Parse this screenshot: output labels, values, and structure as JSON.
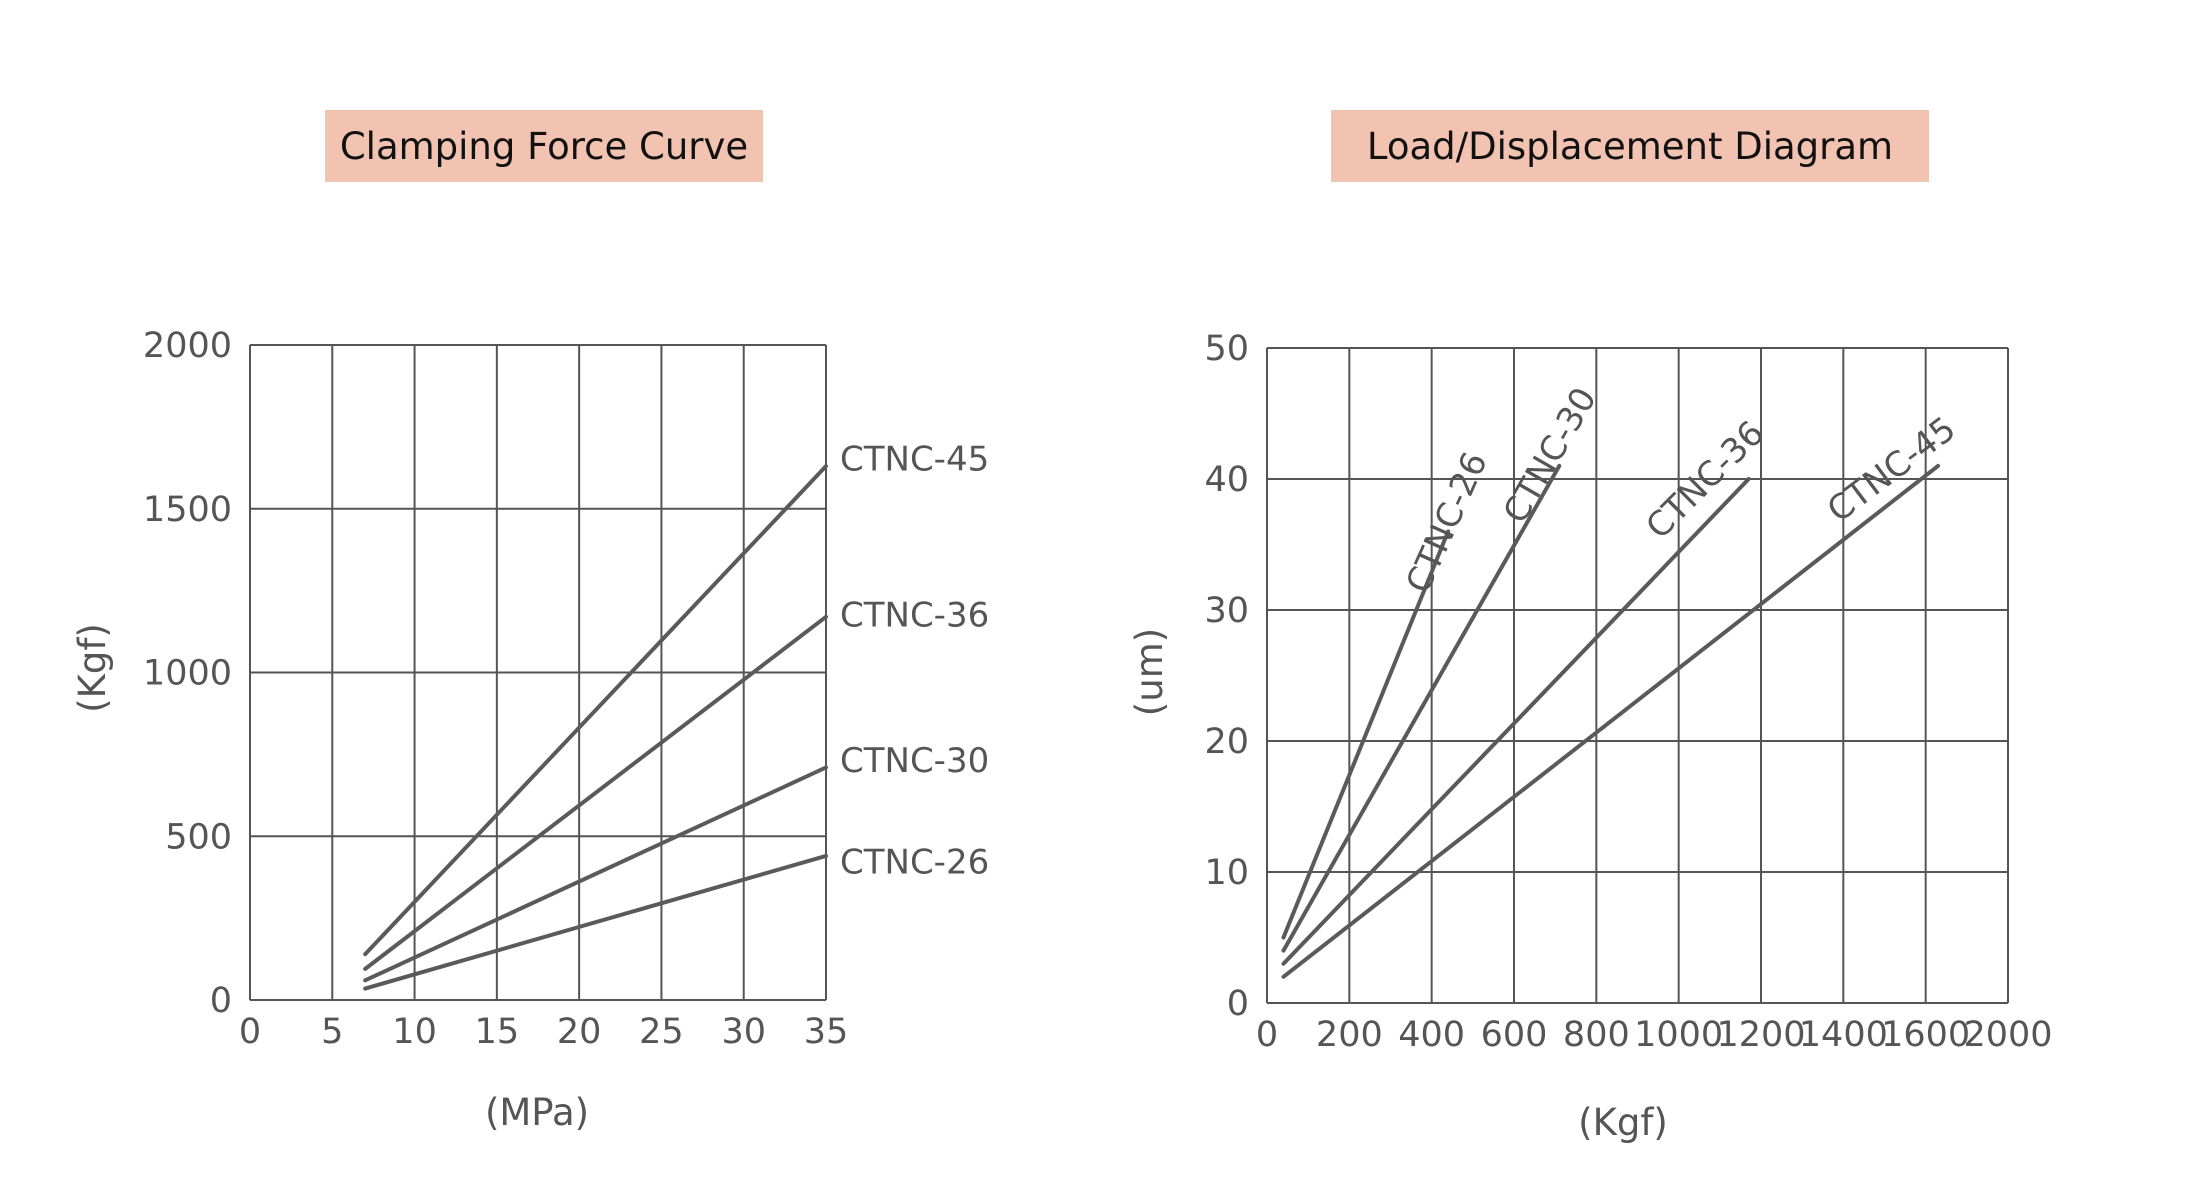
{
  "chart_data": [
    {
      "type": "line",
      "title": "Clamping Force Curve",
      "xlabel": "(MPa)",
      "ylabel": "(Kgf)",
      "xlim": [
        0,
        35
      ],
      "ylim": [
        0,
        2000
      ],
      "x_ticks": [
        "0",
        "5",
        "10",
        "15",
        "20",
        "25",
        "30",
        "35"
      ],
      "y_ticks": [
        "0",
        "500",
        "1000",
        "1500",
        "2000"
      ],
      "grid": true,
      "series": [
        {
          "name": "CTNC-45",
          "points": [
            [
              7,
              140
            ],
            [
              35,
              1630
            ]
          ]
        },
        {
          "name": "CTNC-36",
          "points": [
            [
              7,
              95
            ],
            [
              35,
              1170
            ]
          ]
        },
        {
          "name": "CTNC-30",
          "points": [
            [
              7,
              60
            ],
            [
              35,
              710
            ]
          ]
        },
        {
          "name": "CTNC-26",
          "points": [
            [
              7,
              35
            ],
            [
              35,
              440
            ]
          ]
        }
      ]
    },
    {
      "type": "line",
      "title": "Load/Displacement Diagram",
      "xlabel": "(Kgf)",
      "ylabel": "(um)",
      "xlim": [
        0,
        2000
      ],
      "ylim": [
        0,
        50
      ],
      "x_ticks": [
        "0",
        "200",
        "400",
        "600",
        "800",
        "1000",
        "1200",
        "1400",
        "1600",
        "2000"
      ],
      "y_ticks": [
        "0",
        "10",
        "20",
        "30",
        "40",
        "50"
      ],
      "grid": true,
      "series": [
        {
          "name": "CTNC-26",
          "points": [
            [
              40,
              5
            ],
            [
              440,
              36
            ]
          ]
        },
        {
          "name": "CTNC-30",
          "points": [
            [
              40,
              4
            ],
            [
              710,
              41
            ]
          ]
        },
        {
          "name": "CTNC-36",
          "points": [
            [
              40,
              3
            ],
            [
              1170,
              40
            ]
          ]
        },
        {
          "name": "CTNC-45",
          "points": [
            [
              40,
              2
            ],
            [
              1630,
              41
            ]
          ]
        }
      ]
    }
  ]
}
